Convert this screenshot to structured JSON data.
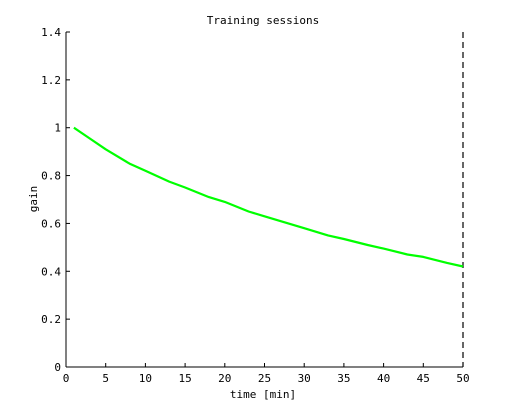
{
  "chart_data": {
    "type": "line",
    "title": "Training sessions",
    "xlabel": "time [min]",
    "ylabel": "gain",
    "xlim": [
      0,
      50
    ],
    "ylim": [
      0,
      1.4
    ],
    "x_ticks": [
      "0",
      "5",
      "10",
      "15",
      "20",
      "25",
      "30",
      "35",
      "40",
      "45",
      "50"
    ],
    "y_ticks": [
      "0",
      "0.2",
      "0.4",
      "0.6",
      "0.8",
      "1",
      "1.2",
      "1.4"
    ],
    "grid": false,
    "vertical_marker": {
      "x": 50,
      "style": "dashed",
      "color": "#000000"
    },
    "series": [
      {
        "color": "#00ff00",
        "x": [
          1,
          3,
          5,
          8,
          10,
          13,
          15,
          18,
          20,
          23,
          25,
          28,
          30,
          33,
          35,
          38,
          40,
          43,
          45,
          48,
          50
        ],
        "values": [
          1.0,
          0.955,
          0.91,
          0.85,
          0.82,
          0.775,
          0.75,
          0.71,
          0.69,
          0.65,
          0.63,
          0.6,
          0.58,
          0.55,
          0.535,
          0.51,
          0.495,
          0.47,
          0.46,
          0.435,
          0.42
        ]
      }
    ]
  }
}
